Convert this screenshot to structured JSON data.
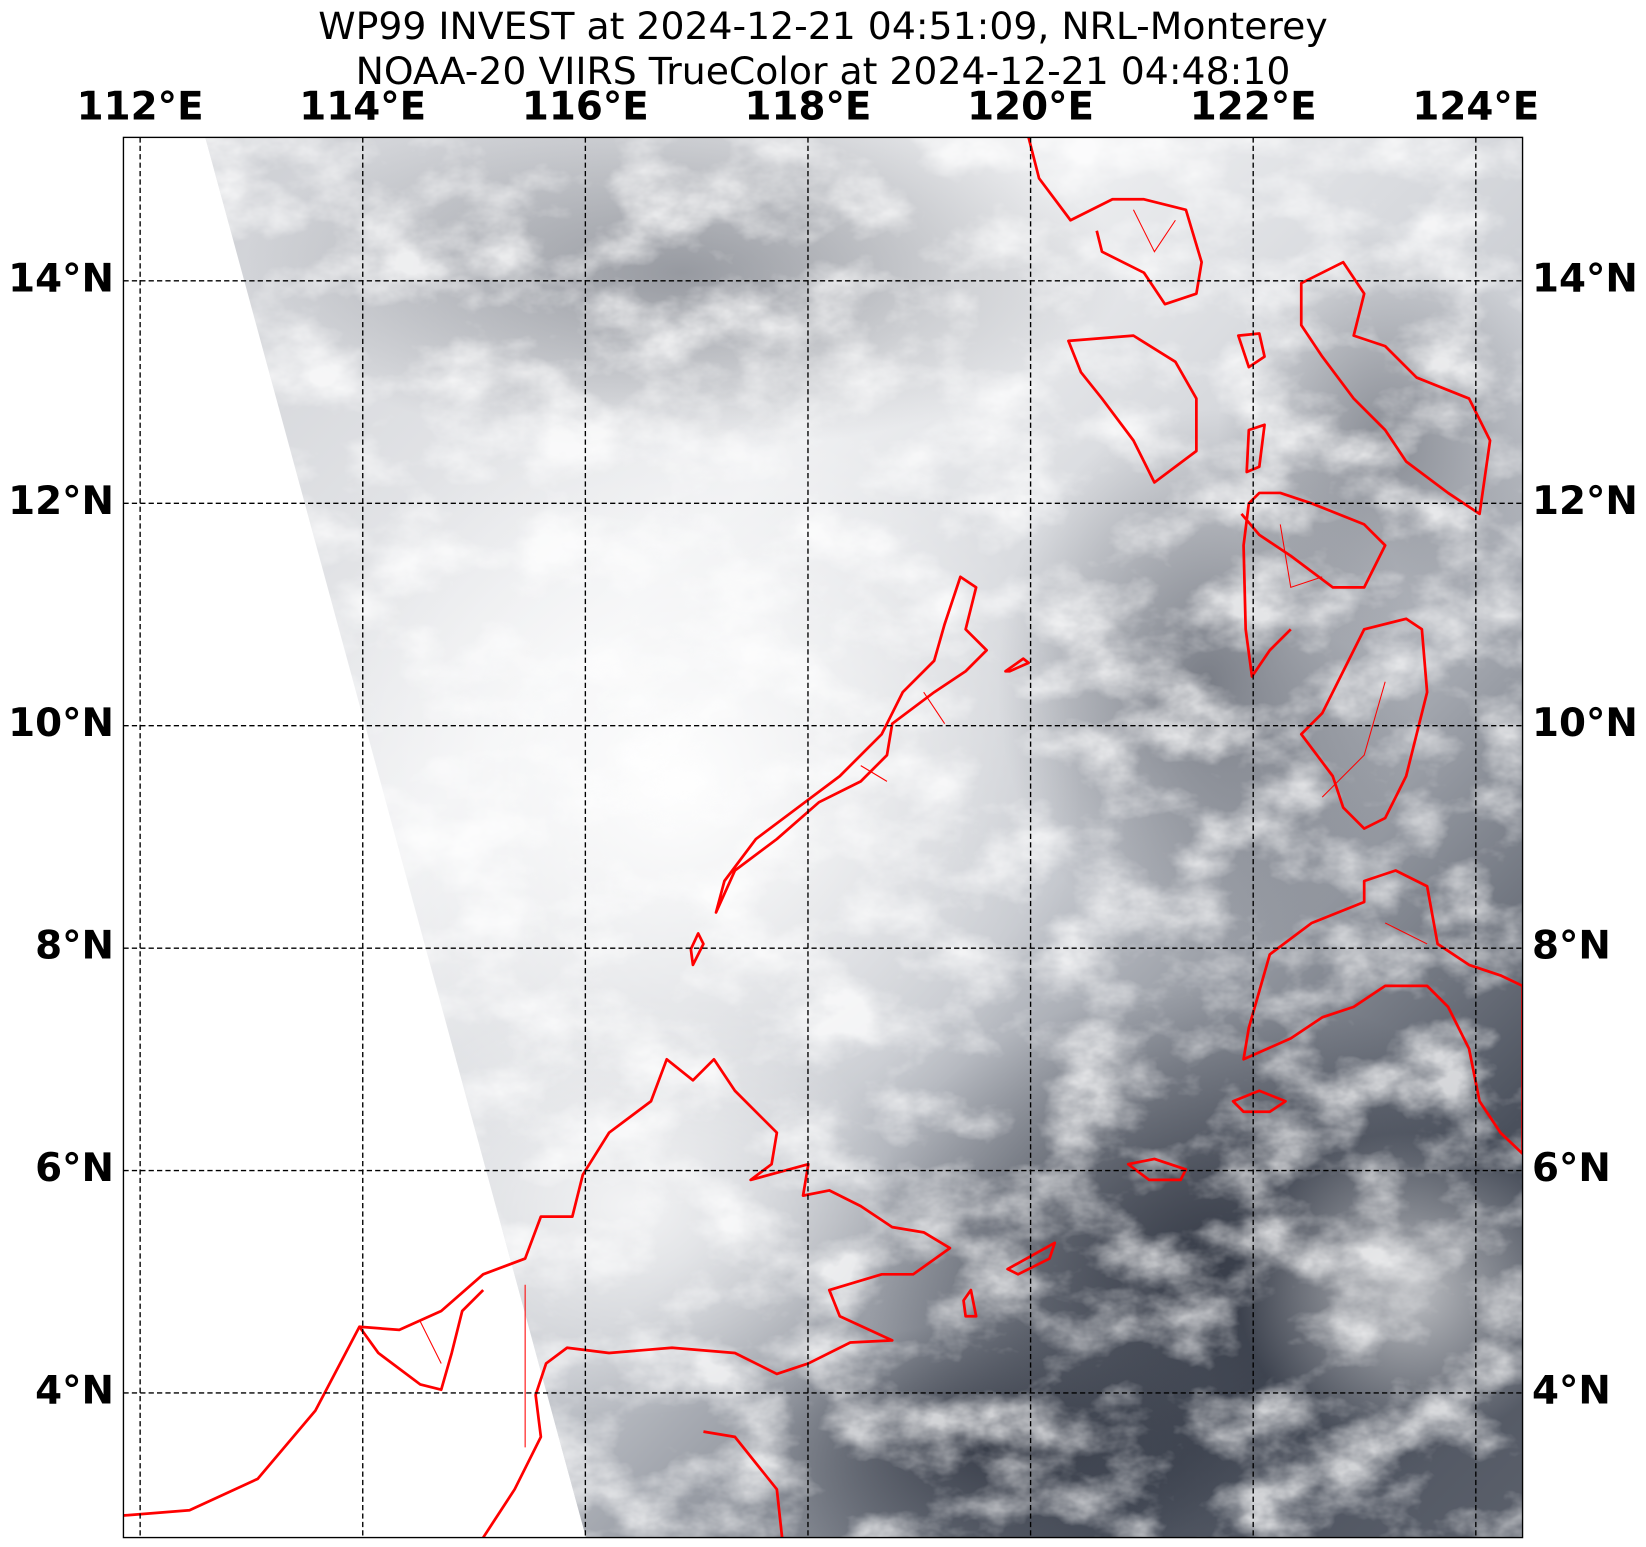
{
  "map": {
    "title": [
      "WP99 INVEST at 2024-12-21 04:51:09, NRL-Monterey",
      "NOAA-20 VIIRS TrueColor at 2024-12-21 04:48:10"
    ],
    "xlim": [
      111.85,
      124.42
    ],
    "ylim": [
      2.7,
      15.29
    ],
    "xticks": [
      {
        "value": 112,
        "label": "112°E"
      },
      {
        "value": 114,
        "label": "114°E"
      },
      {
        "value": 116,
        "label": "116°E"
      },
      {
        "value": 118,
        "label": "118°E"
      },
      {
        "value": 120,
        "label": "120°E"
      },
      {
        "value": 122,
        "label": "122°E"
      },
      {
        "value": 124,
        "label": "124°E"
      }
    ],
    "yticks": [
      {
        "value": 4,
        "label": "4°N"
      },
      {
        "value": 6,
        "label": "6°N"
      },
      {
        "value": 8,
        "label": "8°N"
      },
      {
        "value": 10,
        "label": "10°N"
      },
      {
        "value": 12,
        "label": "12°N"
      },
      {
        "value": 14,
        "label": "14°N"
      }
    ],
    "grid": true
  }
}
